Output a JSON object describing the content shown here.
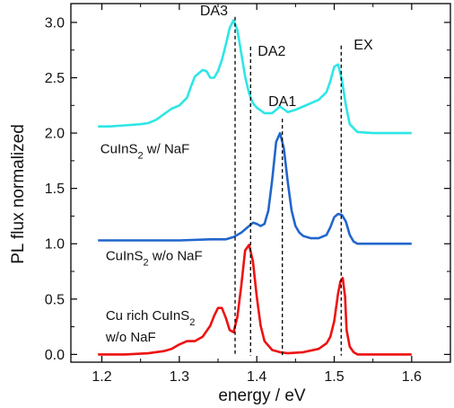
{
  "chart_data": {
    "type": "line",
    "xlabel": "energy / eV",
    "ylabel": "PL flux normalized",
    "xlim": [
      1.16,
      1.65
    ],
    "ylim": [
      -0.07,
      3.17
    ],
    "xticks": [
      "1.2",
      "1.3",
      "1.4",
      "1.5",
      "1.6"
    ],
    "xtick_values": [
      1.2,
      1.3,
      1.4,
      1.5,
      1.6
    ],
    "yticks": [
      "0.0",
      "0.5",
      "1.0",
      "1.5",
      "2.0",
      "2.5",
      "3.0"
    ],
    "ytick_values": [
      0.0,
      0.5,
      1.0,
      1.5,
      2.0,
      2.5,
      3.0
    ],
    "vlines": [
      {
        "label": "DA3",
        "x": 1.372,
        "y_top": 3.05
      },
      {
        "label": "DA2",
        "x": 1.392,
        "y_top": 2.78
      },
      {
        "label": "DA1",
        "x": 1.433,
        "y_top": 2.13
      },
      {
        "label": "EX",
        "x": 1.509,
        "y_top": 2.79
      }
    ],
    "series": [
      {
        "label_main": "CuInS",
        "label_sub": "2",
        "label_rest": " w/ NaF",
        "color": "#2EE6E6",
        "x": [
          1.195,
          1.21,
          1.23,
          1.25,
          1.26,
          1.27,
          1.28,
          1.29,
          1.3,
          1.31,
          1.315,
          1.32,
          1.33,
          1.335,
          1.34,
          1.345,
          1.35,
          1.355,
          1.36,
          1.365,
          1.37,
          1.375,
          1.38,
          1.385,
          1.39,
          1.395,
          1.4,
          1.41,
          1.42,
          1.43,
          1.44,
          1.45,
          1.46,
          1.47,
          1.48,
          1.49,
          1.495,
          1.5,
          1.505,
          1.51,
          1.515,
          1.52,
          1.53,
          1.55,
          1.6
        ],
        "y": [
          2.06,
          2.06,
          2.07,
          2.08,
          2.09,
          2.12,
          2.17,
          2.22,
          2.25,
          2.32,
          2.42,
          2.51,
          2.57,
          2.56,
          2.5,
          2.5,
          2.56,
          2.66,
          2.8,
          2.95,
          3.02,
          2.93,
          2.72,
          2.51,
          2.36,
          2.27,
          2.23,
          2.18,
          2.18,
          2.24,
          2.19,
          2.21,
          2.24,
          2.27,
          2.3,
          2.37,
          2.47,
          2.6,
          2.62,
          2.48,
          2.25,
          2.08,
          2.01,
          2.0,
          2.0
        ]
      },
      {
        "label_main": "CuInS",
        "label_sub": "2",
        "label_rest": " w/o NaF",
        "color": "#2266CC",
        "x": [
          1.195,
          1.25,
          1.3,
          1.34,
          1.36,
          1.37,
          1.38,
          1.39,
          1.395,
          1.4,
          1.405,
          1.41,
          1.415,
          1.42,
          1.425,
          1.43,
          1.435,
          1.44,
          1.445,
          1.45,
          1.455,
          1.46,
          1.47,
          1.48,
          1.49,
          1.495,
          1.5,
          1.505,
          1.51,
          1.515,
          1.52,
          1.525,
          1.53,
          1.55,
          1.6
        ],
        "y": [
          1.03,
          1.03,
          1.03,
          1.04,
          1.04,
          1.06,
          1.1,
          1.16,
          1.19,
          1.18,
          1.16,
          1.18,
          1.3,
          1.58,
          1.92,
          2.0,
          1.86,
          1.56,
          1.3,
          1.16,
          1.1,
          1.07,
          1.05,
          1.05,
          1.08,
          1.15,
          1.24,
          1.27,
          1.26,
          1.2,
          1.08,
          1.02,
          1.0,
          1.0,
          1.0
        ]
      },
      {
        "label_main": "Cu rich CuInS",
        "label_sub": "2",
        "label_rest": "",
        "label_line2": "w/o NaF",
        "color": "#EE1111",
        "x": [
          1.195,
          1.23,
          1.26,
          1.28,
          1.29,
          1.3,
          1.31,
          1.32,
          1.33,
          1.34,
          1.345,
          1.35,
          1.355,
          1.36,
          1.365,
          1.37,
          1.375,
          1.38,
          1.385,
          1.39,
          1.395,
          1.4,
          1.405,
          1.41,
          1.42,
          1.43,
          1.44,
          1.46,
          1.48,
          1.49,
          1.495,
          1.5,
          1.505,
          1.508,
          1.511,
          1.514,
          1.516,
          1.52,
          1.525,
          1.53,
          1.55,
          1.6
        ],
        "y": [
          0.0,
          0.0,
          0.01,
          0.03,
          0.05,
          0.09,
          0.12,
          0.12,
          0.16,
          0.26,
          0.35,
          0.42,
          0.42,
          0.33,
          0.22,
          0.2,
          0.34,
          0.62,
          0.94,
          0.99,
          0.84,
          0.52,
          0.26,
          0.12,
          0.04,
          0.02,
          0.01,
          0.02,
          0.05,
          0.1,
          0.16,
          0.3,
          0.55,
          0.66,
          0.69,
          0.52,
          0.22,
          0.07,
          0.02,
          0.0,
          0.0,
          0.0
        ]
      }
    ]
  }
}
